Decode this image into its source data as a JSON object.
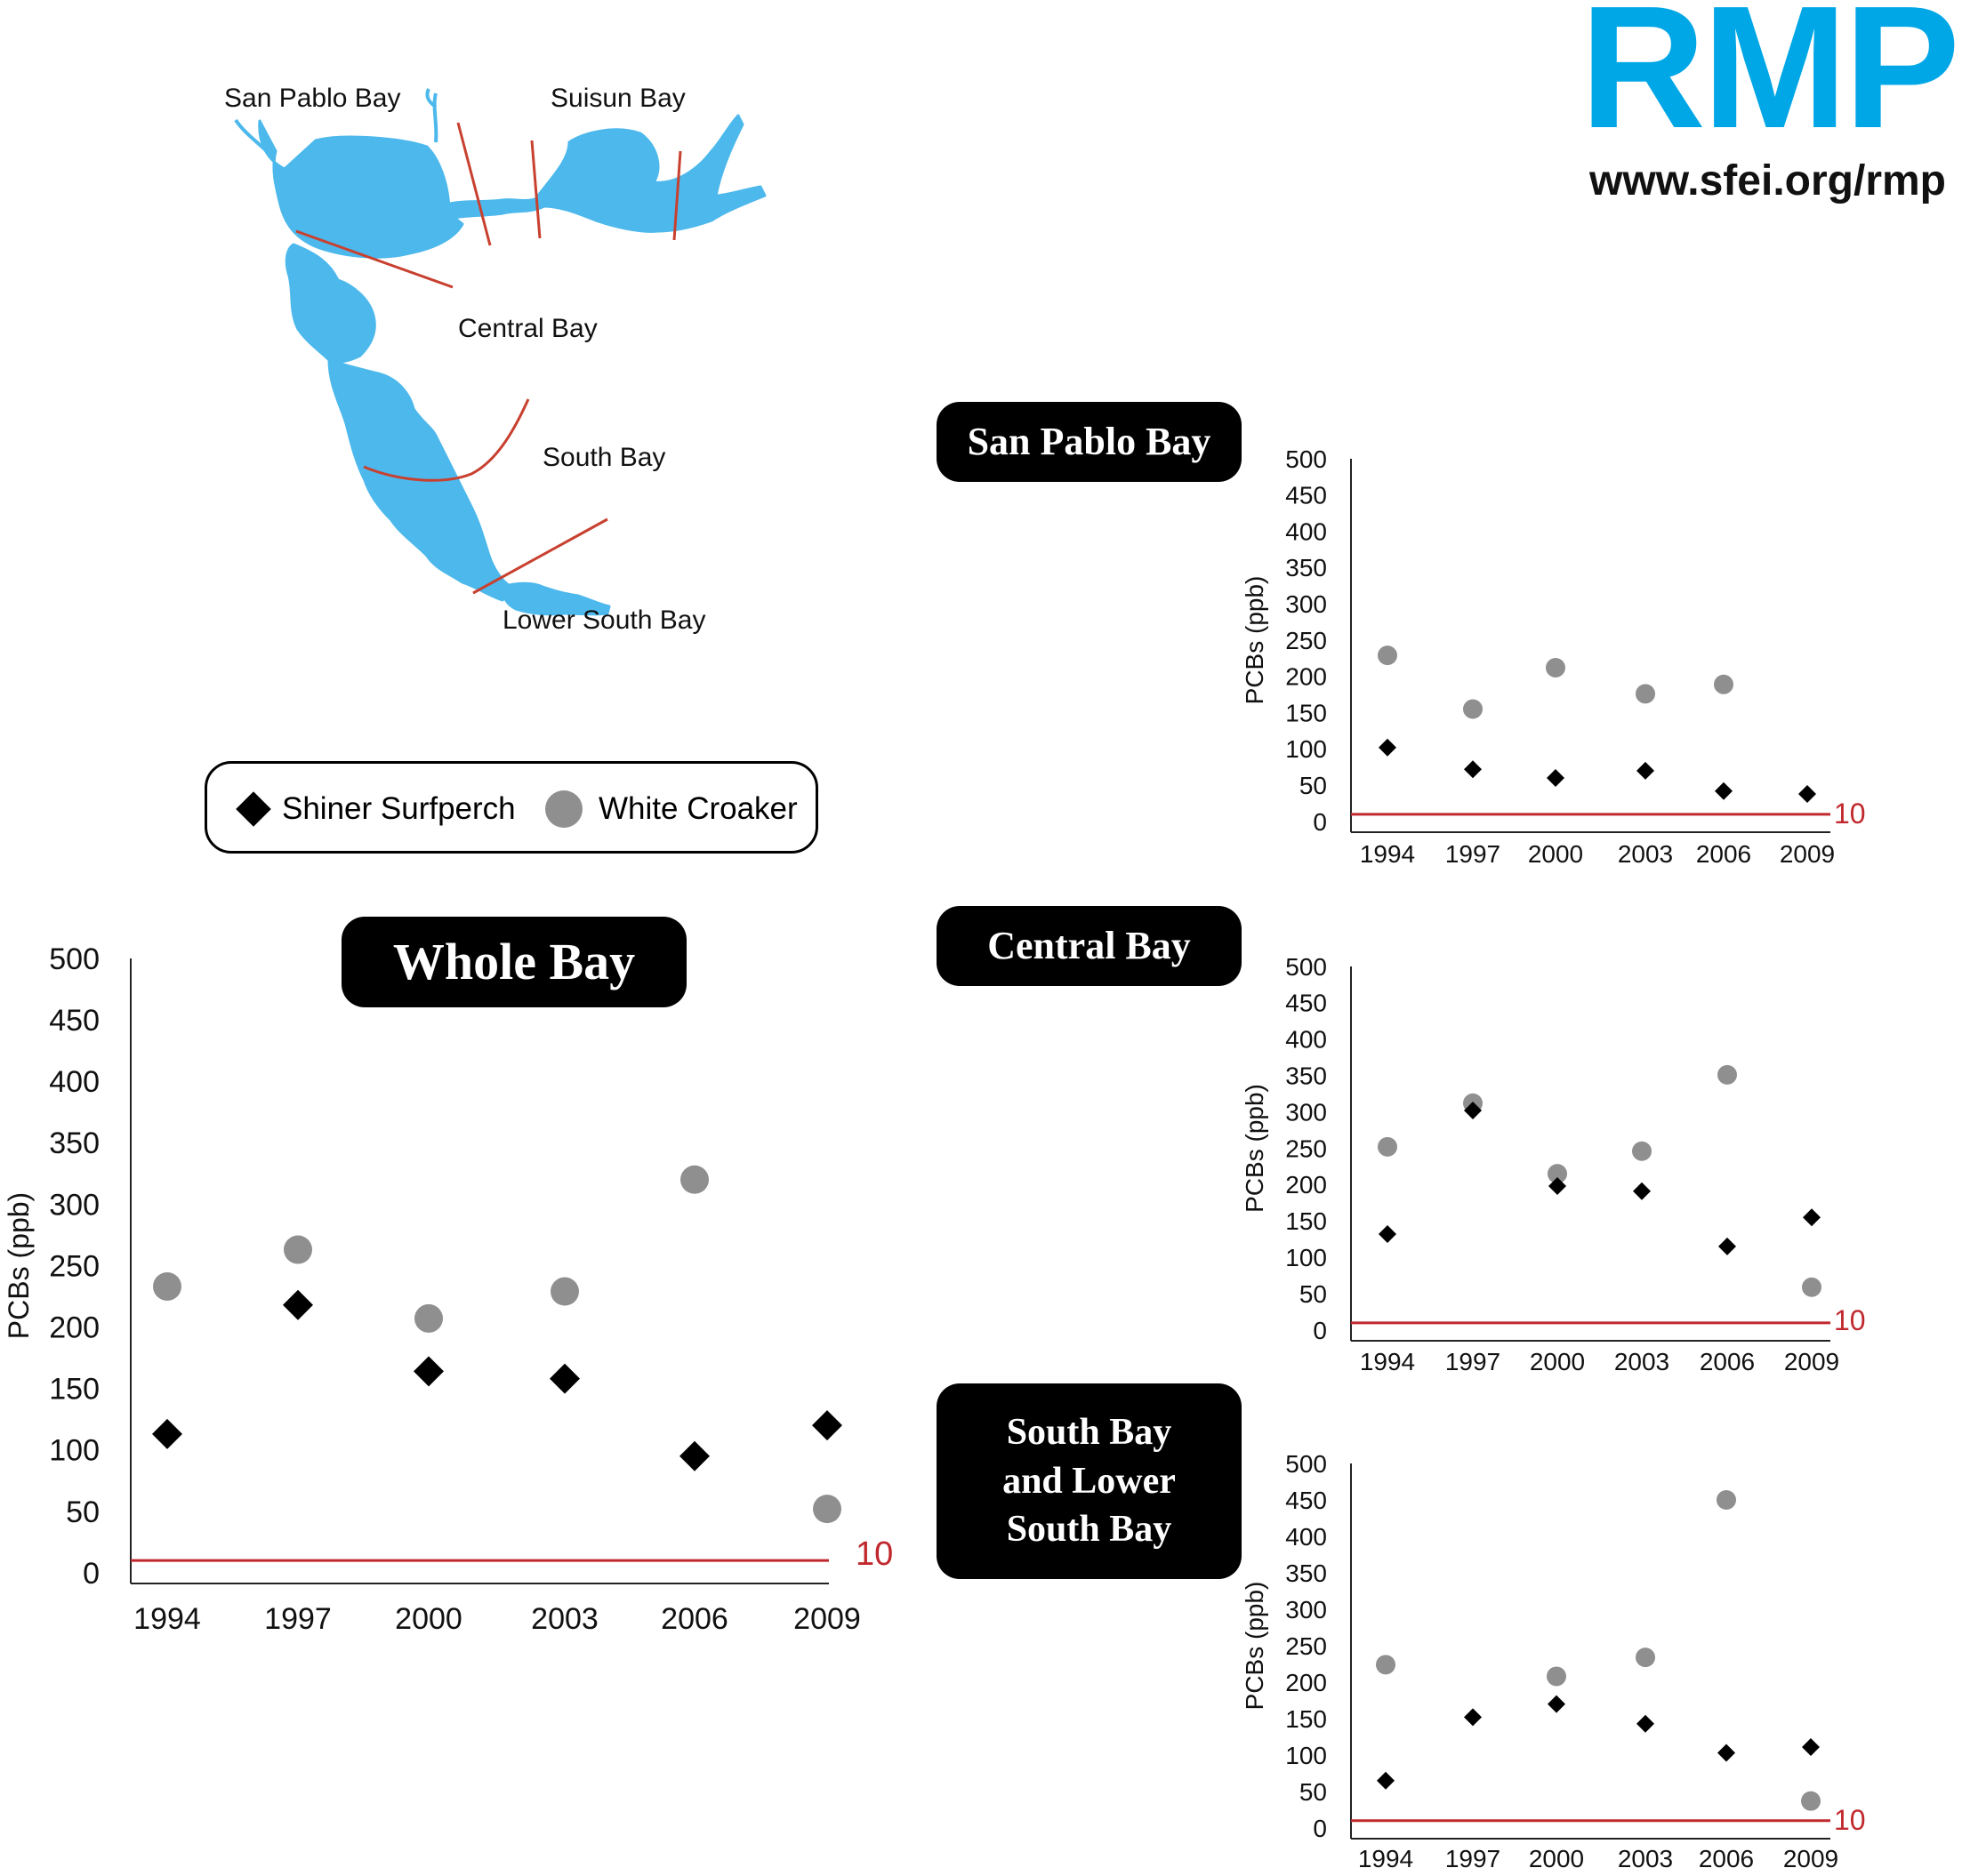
{
  "logo": {
    "text": "RMP",
    "url": "www.sfei.org/rmp",
    "color": "#00a7e7"
  },
  "map": {
    "water_color": "#4cb8ec",
    "line_color": "#c8402f",
    "labels": {
      "san_pablo": "San Pablo Bay",
      "suisun": "Suisun Bay",
      "central": "Central Bay",
      "south": "South Bay",
      "lower_south": "Lower South Bay"
    }
  },
  "legend": {
    "shiner": "Shiner Surfperch",
    "croaker": "White Croaker"
  },
  "titles": {
    "whole": "Whole Bay",
    "san_pablo": "San Pablo Bay",
    "central": "Central Bay",
    "south": [
      "South Bay",
      "and Lower",
      "South Bay"
    ]
  },
  "colors": {
    "shiner": "#000000",
    "croaker": "#8f8f8f",
    "threshold": "#c0282d"
  },
  "chart_data": [
    {
      "id": "whole",
      "type": "scatter",
      "title": "Whole Bay",
      "ylabel": "PCBs (ppb)",
      "categories": [
        "1994",
        "1997",
        "2000",
        "2003",
        "2006",
        "2009"
      ],
      "ylim": [
        0,
        500
      ],
      "yticks": [
        0,
        50,
        100,
        150,
        200,
        250,
        300,
        350,
        400,
        450,
        500
      ],
      "threshold": {
        "value": 10,
        "label": "10"
      },
      "series": [
        {
          "name": "Shiner Surfperch",
          "marker": "diamond",
          "values": [
            113,
            218,
            164,
            158,
            95,
            120
          ]
        },
        {
          "name": "White Croaker",
          "marker": "circle",
          "values": [
            233,
            263,
            207,
            229,
            320,
            52
          ]
        }
      ]
    },
    {
      "id": "san_pablo",
      "type": "scatter",
      "title": "San Pablo Bay",
      "ylabel": "PCBs (ppb)",
      "categories": [
        "1994",
        "1997",
        "2000",
        "2003",
        "2006",
        "2009"
      ],
      "ylim": [
        0,
        500
      ],
      "yticks": [
        0,
        50,
        100,
        150,
        200,
        250,
        300,
        350,
        400,
        450,
        500
      ],
      "threshold": {
        "value": 10,
        "label": "10"
      },
      "series": [
        {
          "name": "Shiner Surfperch",
          "marker": "diamond",
          "values": [
            102,
            72,
            60,
            70,
            42,
            38
          ]
        },
        {
          "name": "White Croaker",
          "marker": "circle",
          "values": [
            229,
            155,
            212,
            176,
            189,
            null
          ]
        }
      ]
    },
    {
      "id": "central",
      "type": "scatter",
      "title": "Central Bay",
      "ylabel": "PCBs (ppb)",
      "categories": [
        "1994",
        "1997",
        "2000",
        "2003",
        "2006",
        "2009"
      ],
      "ylim": [
        0,
        500
      ],
      "yticks": [
        0,
        50,
        100,
        150,
        200,
        250,
        300,
        350,
        400,
        450,
        500
      ],
      "threshold": {
        "value": 10,
        "label": "10"
      },
      "series": [
        {
          "name": "Shiner Surfperch",
          "marker": "diamond",
          "values": [
            132,
            302,
            198,
            191,
            115,
            155
          ]
        },
        {
          "name": "White Croaker",
          "marker": "circle",
          "values": [
            252,
            312,
            215,
            246,
            351,
            59
          ]
        }
      ]
    },
    {
      "id": "south",
      "type": "scatter",
      "title": "South Bay and Lower South Bay",
      "ylabel": "PCBs (ppb)",
      "categories": [
        "1994",
        "1997",
        "2000",
        "2003",
        "2006",
        "2009"
      ],
      "ylim": [
        0,
        500
      ],
      "yticks": [
        0,
        50,
        100,
        150,
        200,
        250,
        300,
        350,
        400,
        450,
        500
      ],
      "threshold": {
        "value": 10,
        "label": "10"
      },
      "series": [
        {
          "name": "Shiner Surfperch",
          "marker": "diamond",
          "values": [
            65,
            152,
            170,
            143,
            103,
            111
          ]
        },
        {
          "name": "White Croaker",
          "marker": "circle",
          "values": [
            224,
            null,
            208,
            234,
            450,
            37
          ]
        }
      ]
    }
  ]
}
